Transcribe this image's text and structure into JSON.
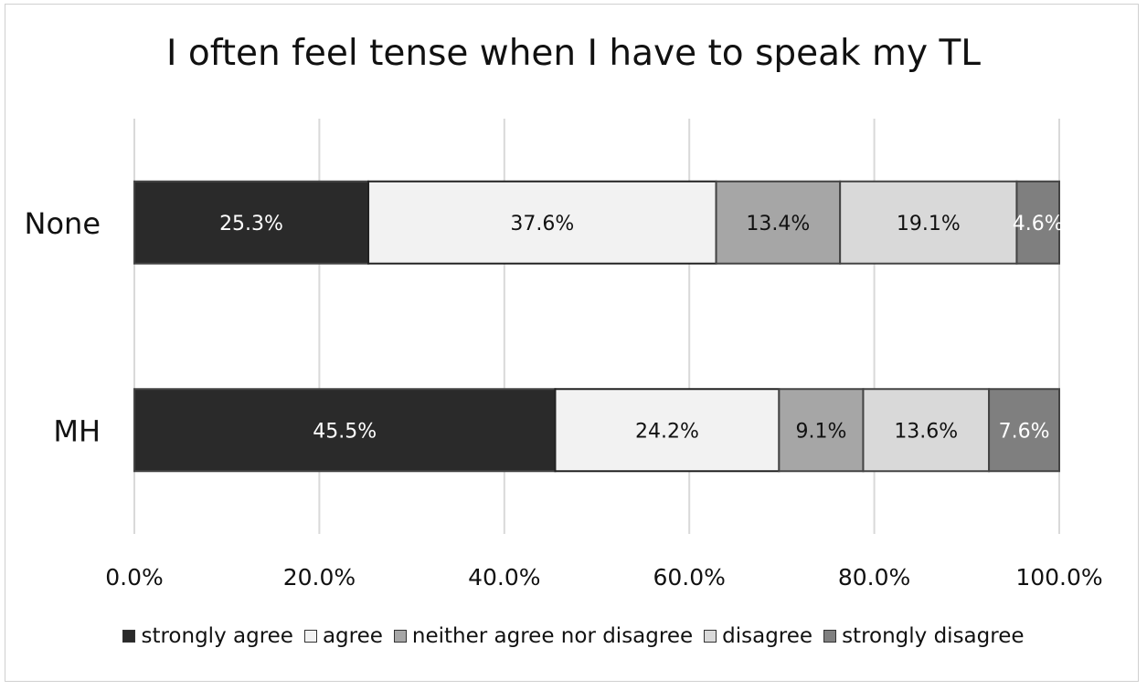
{
  "chart_data": {
    "type": "bar",
    "orientation": "horizontal",
    "stacked": "percent",
    "title": "I often feel tense when I have to speak my TL",
    "categories": [
      "None",
      "MH"
    ],
    "series": [
      {
        "name": "strongly agree",
        "color": "#2a2a2a",
        "label_color": "#ffffff",
        "values": [
          25.3,
          45.5
        ],
        "labels": [
          "25.3%",
          "45.5%"
        ]
      },
      {
        "name": "agree",
        "color": "#f2f2f2",
        "label_color": "#111111",
        "values": [
          37.6,
          24.2
        ],
        "labels": [
          "37.6%",
          "24.2%"
        ]
      },
      {
        "name": "neither agree nor disagree",
        "color": "#a6a6a6",
        "label_color": "#111111",
        "values": [
          13.4,
          9.1
        ],
        "labels": [
          "13.4%",
          "9.1%"
        ]
      },
      {
        "name": "disagree",
        "color": "#d9d9d9",
        "label_color": "#111111",
        "values": [
          19.1,
          13.6
        ],
        "labels": [
          "19.1%",
          "13.6%"
        ]
      },
      {
        "name": "strongly disagree",
        "color": "#7f7f7f",
        "label_color": "#ffffff",
        "values": [
          4.6,
          7.6
        ],
        "labels": [
          "4.6%",
          "7.6%"
        ]
      }
    ],
    "xlim": [
      0,
      100
    ],
    "x_ticks": [
      0,
      20,
      40,
      60,
      80,
      100
    ],
    "x_tick_labels": [
      "0.0%",
      "20.0%",
      "40.0%",
      "60.0%",
      "80.0%",
      "100.0%"
    ],
    "grid": true,
    "legend_position": "bottom"
  }
}
